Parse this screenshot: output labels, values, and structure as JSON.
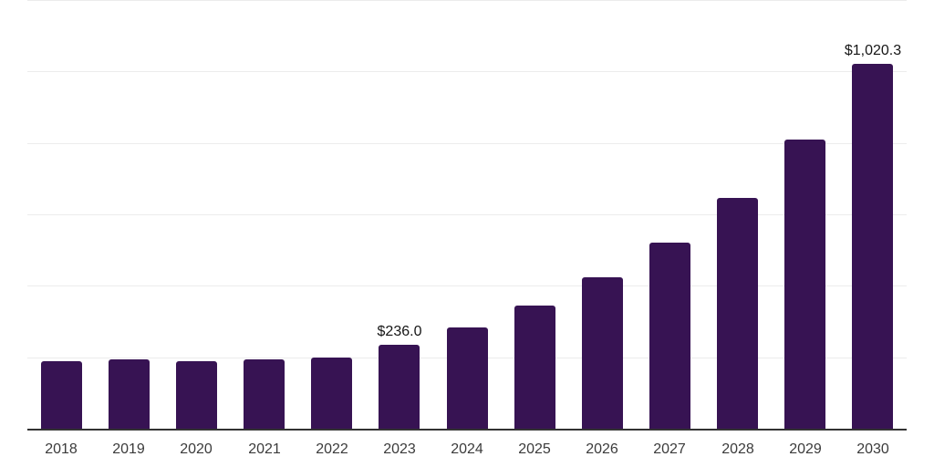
{
  "chart_data": {
    "type": "bar",
    "title": "",
    "xlabel": "",
    "ylabel": "",
    "categories": [
      "2018",
      "2019",
      "2020",
      "2021",
      "2022",
      "2023",
      "2024",
      "2025",
      "2026",
      "2027",
      "2028",
      "2029",
      "2030"
    ],
    "values": [
      188,
      193,
      188,
      193,
      199,
      236.0,
      283,
      345,
      424,
      521,
      646,
      810,
      1020.3
    ],
    "data_labels": [
      {
        "category": "2023",
        "text": "$236.0"
      },
      {
        "category": "2030",
        "text": "$1,020.3"
      }
    ],
    "ylim": [
      0,
      1200
    ],
    "gridline_step": 200,
    "grid": true,
    "legend": false,
    "colors": {
      "bar": "#371353",
      "gridline": "#ececec",
      "axis_line": "#333333",
      "tick_label": "#3b3b3b",
      "data_label": "#161616",
      "background": "#ffffff"
    }
  }
}
